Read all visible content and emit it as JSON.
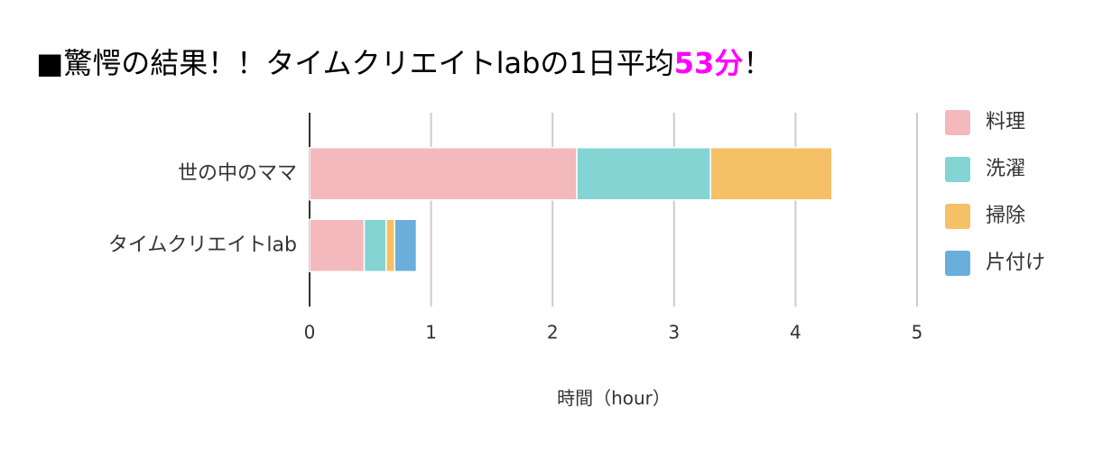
{
  "chart_data": {
    "type": "stacked_barh",
    "title": "■驚愕の結果！！タイムクリエイトlabの1日平均",
    "title_highlight": "53分",
    "title_suffix": "！",
    "xlabel": "時間（hour）",
    "categories": [
      "世の中のママ",
      "タイムクリエイトlab"
    ],
    "series": [
      {
        "name": "料理",
        "color": "#f4b9bd",
        "values": [
          2.2,
          0.45
        ]
      },
      {
        "name": "洗濯",
        "color": "#83d4d3",
        "values": [
          1.1,
          0.18
        ]
      },
      {
        "name": "掃除",
        "color": "#f6c067",
        "values": [
          1.0,
          0.07
        ]
      },
      {
        "name": "片付け",
        "color": "#6aaedb",
        "values": [
          0,
          0.18
        ]
      }
    ],
    "xlim": [
      0,
      5
    ],
    "xticks": [
      0,
      1,
      2,
      3,
      4,
      5
    ],
    "grid": true,
    "legend": "right"
  }
}
